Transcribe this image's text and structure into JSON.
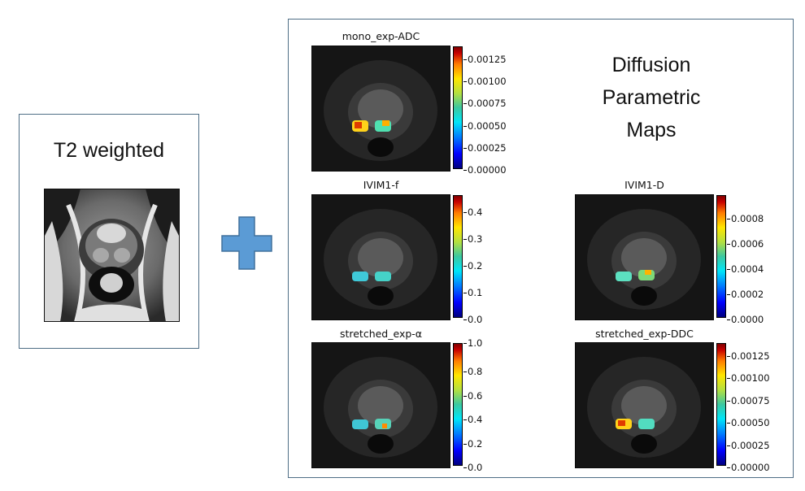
{
  "t2": {
    "title": "T2 weighted"
  },
  "maps": {
    "title_lines": [
      "Diffusion",
      "Parametric",
      "Maps"
    ],
    "panels": [
      {
        "id": "mono",
        "title": "mono_exp-ADC",
        "ticks": [
          "0.00000",
          "0.00025",
          "0.00050",
          "0.00075",
          "0.00100",
          "0.00125"
        ]
      },
      {
        "id": "ivimf",
        "title": "IVIM1-f",
        "ticks": [
          "0.0",
          "0.1",
          "0.2",
          "0.3",
          "0.4"
        ]
      },
      {
        "id": "ivimd",
        "title": "IVIM1-D",
        "ticks": [
          "0.0000",
          "0.0002",
          "0.0004",
          "0.0006",
          "0.0008"
        ]
      },
      {
        "id": "alpha",
        "title": "stretched_exp-α",
        "ticks": [
          "0.0",
          "0.2",
          "0.4",
          "0.6",
          "0.8",
          "1.0"
        ]
      },
      {
        "id": "ddc",
        "title": "stretched_exp-DDC",
        "ticks": [
          "0.00000",
          "0.00025",
          "0.00050",
          "0.00075",
          "0.00100",
          "0.00125"
        ]
      }
    ]
  },
  "colors": {
    "box_border": "#4f6e86",
    "plus": "#5b9bd5",
    "plus_border": "#41719c"
  }
}
